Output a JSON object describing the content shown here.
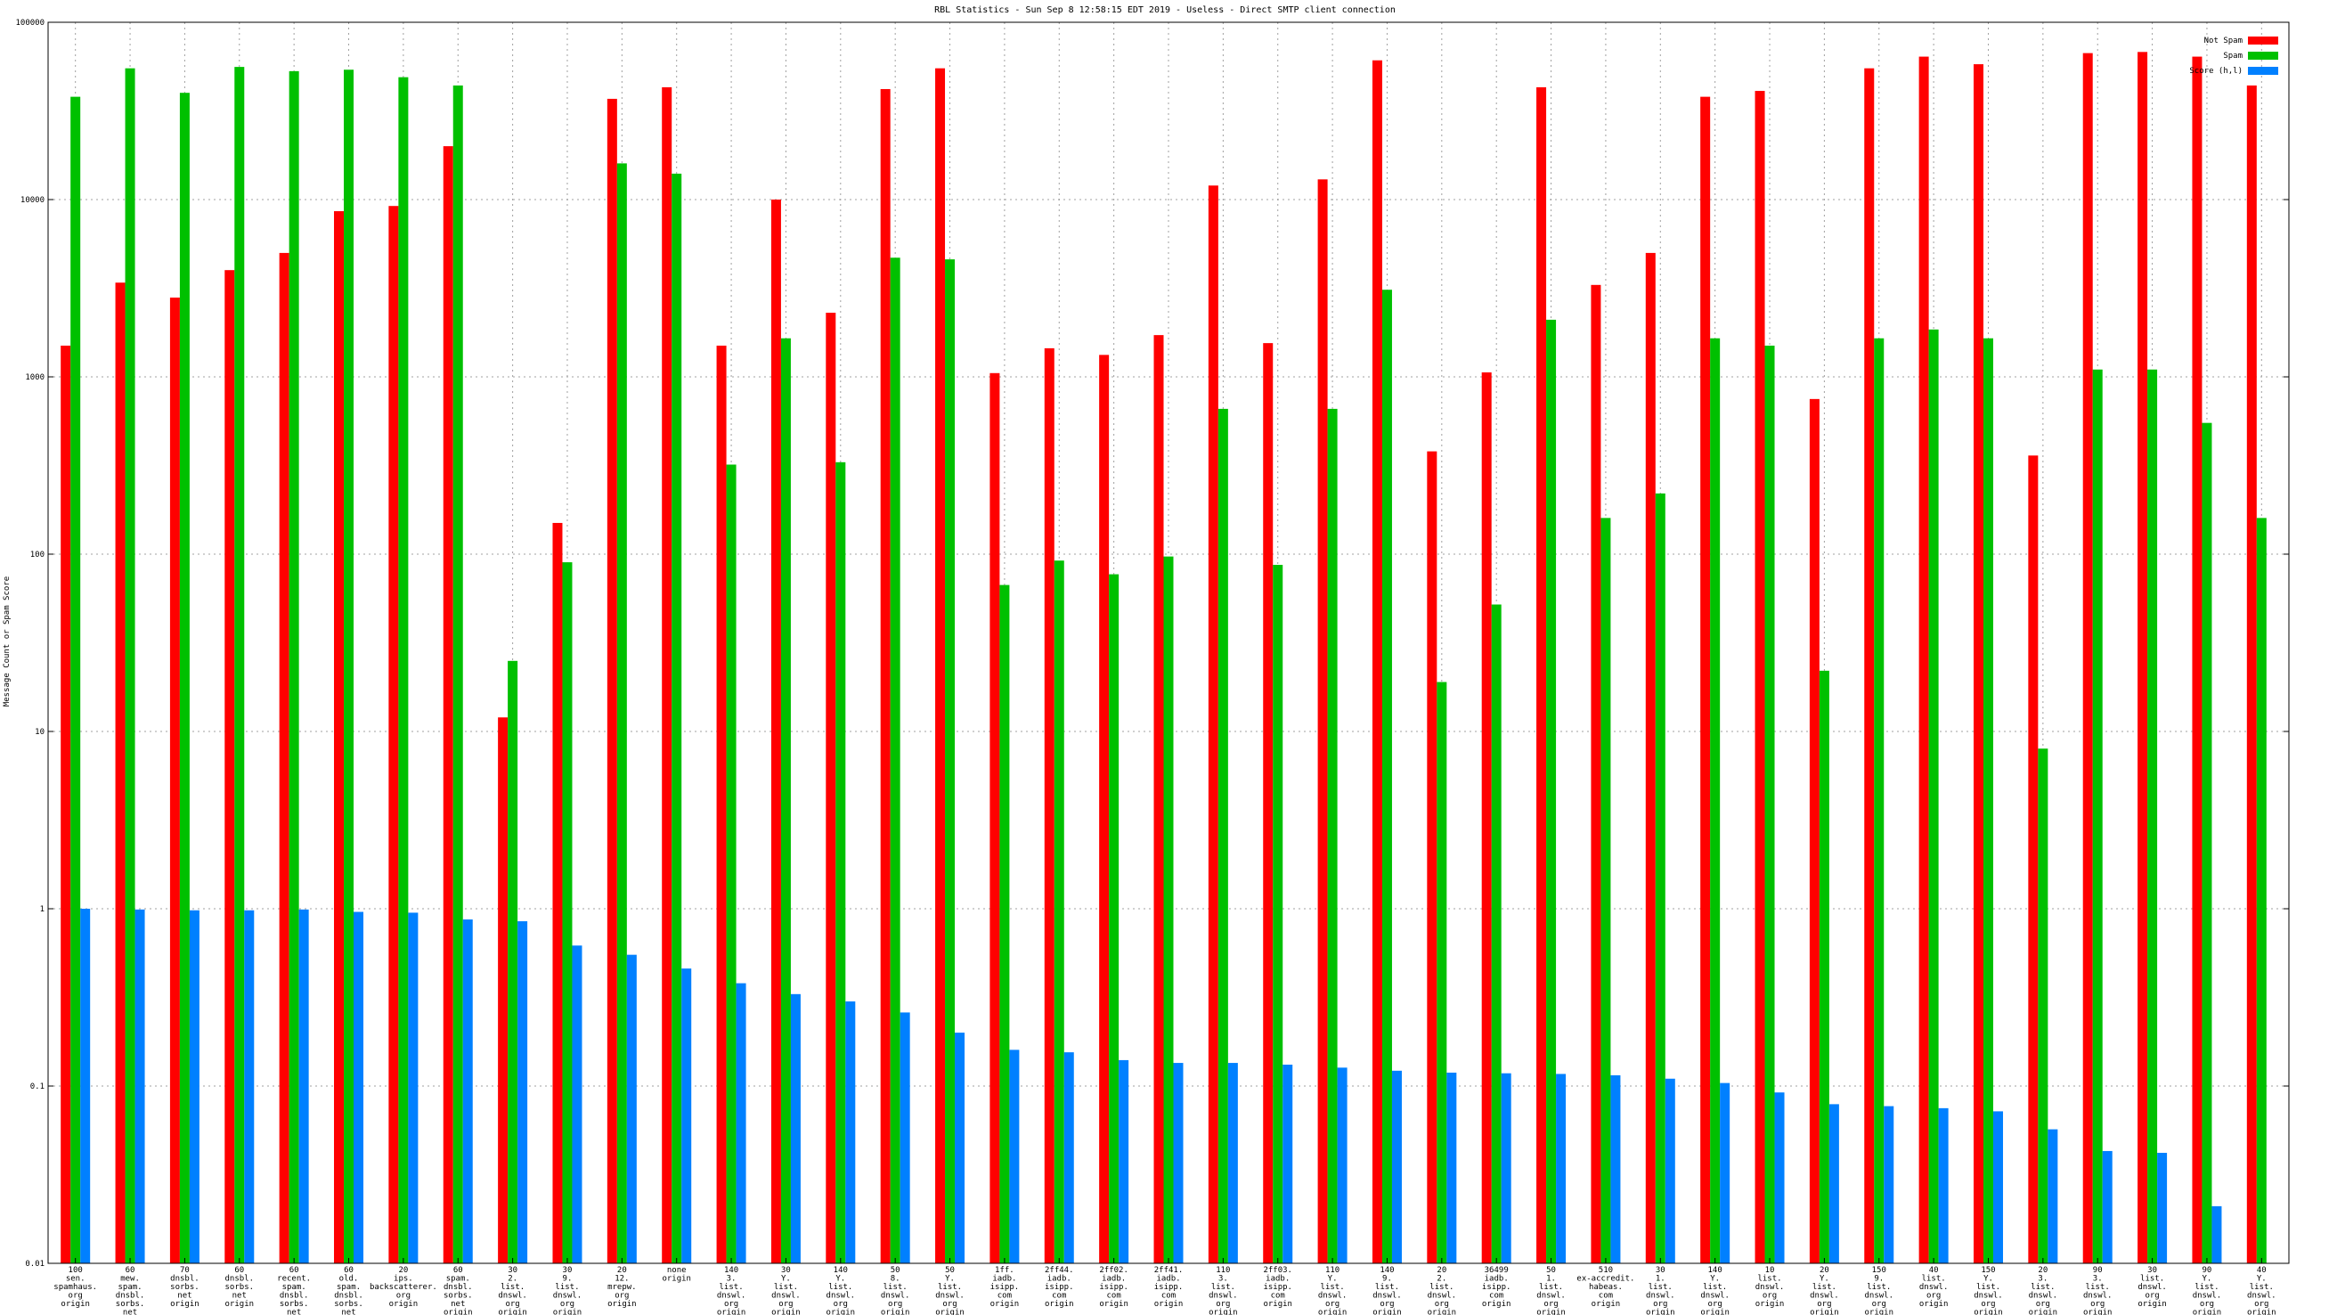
{
  "chart_data": {
    "type": "bar",
    "title": "RBL Statistics - Sun Sep  8 12:58:15 EDT 2019 - Useless - Direct SMTP client connection",
    "xlabel": "",
    "ylabel": "Message Count or Spam Score",
    "yscale": "log",
    "ylim": [
      0.01,
      100000
    ],
    "yticks": [
      "0.01",
      "0.1",
      "1",
      "10",
      "100",
      "1000",
      "10000",
      "100000"
    ],
    "grid": true,
    "legend_position": "top-right",
    "categories": [
      [
        "100",
        "sen.",
        "spamhaus.",
        "org",
        "origin"
      ],
      [
        "60",
        "mew.",
        "spam.",
        "dnsbl.",
        "sorbs.",
        "net",
        "origin"
      ],
      [
        "70",
        "dnsbl.",
        "sorbs.",
        "net",
        "origin"
      ],
      [
        "60",
        "dnsbl.",
        "sorbs.",
        "net",
        "origin"
      ],
      [
        "60",
        "recent.",
        "spam.",
        "dnsbl.",
        "sorbs.",
        "net",
        "origin"
      ],
      [
        "60",
        "old.",
        "spam.",
        "dnsbl.",
        "sorbs.",
        "net",
        "origin"
      ],
      [
        "20",
        "ips.",
        "backscatterer.",
        "org",
        "origin"
      ],
      [
        "60",
        "spam.",
        "dnsbl.",
        "sorbs.",
        "net",
        "origin"
      ],
      [
        "30",
        "2.",
        "list.",
        "dnswl.",
        "org",
        "origin"
      ],
      [
        "30",
        "9.",
        "list.",
        "dnswl.",
        "org",
        "origin"
      ],
      [
        "20",
        "12.",
        "mrepw.",
        "org",
        "origin"
      ],
      [
        "none",
        "origin"
      ],
      [
        "140",
        "3.",
        "list.",
        "dnswl.",
        "org",
        "origin"
      ],
      [
        "30",
        "Y.",
        "list.",
        "dnswl.",
        "org",
        "origin"
      ],
      [
        "140",
        "Y.",
        "list.",
        "dnswl.",
        "org",
        "origin"
      ],
      [
        "50",
        "8.",
        "list.",
        "dnswl.",
        "org",
        "origin"
      ],
      [
        "50",
        "Y.",
        "list.",
        "dnswl.",
        "org",
        "origin"
      ],
      [
        "1ff.",
        "iadb.",
        "isipp.",
        "com",
        "origin"
      ],
      [
        "2ff44.",
        "iadb.",
        "isipp.",
        "com",
        "origin"
      ],
      [
        "2ff02.",
        "iadb.",
        "isipp.",
        "com",
        "origin"
      ],
      [
        "2ff41.",
        "iadb.",
        "isipp.",
        "com",
        "origin"
      ],
      [
        "110",
        "3.",
        "list.",
        "dnswl.",
        "org",
        "origin"
      ],
      [
        "2ff03.",
        "iadb.",
        "isipp.",
        "com",
        "origin"
      ],
      [
        "110",
        "Y.",
        "list.",
        "dnswl.",
        "org",
        "origin"
      ],
      [
        "140",
        "9.",
        "list.",
        "dnswl.",
        "org",
        "origin"
      ],
      [
        "20",
        "2.",
        "list.",
        "dnswl.",
        "org",
        "origin"
      ],
      [
        "36499",
        "iadb.",
        "isipp.",
        "com",
        "origin"
      ],
      [
        "50",
        "1.",
        "list.",
        "dnswl.",
        "org",
        "origin"
      ],
      [
        "510",
        "ex-accredit.",
        "habeas.",
        "com",
        "origin"
      ],
      [
        "30",
        "1.",
        "list.",
        "dnswl.",
        "org",
        "origin"
      ],
      [
        "140",
        "Y.",
        "list.",
        "dnswl.",
        "org",
        "origin"
      ],
      [
        "10",
        "list.",
        "dnswl.",
        "org",
        "origin"
      ],
      [
        "20",
        "Y.",
        "list.",
        "dnswl.",
        "org",
        "origin"
      ],
      [
        "150",
        "9.",
        "list.",
        "dnswl.",
        "org",
        "origin"
      ],
      [
        "40",
        "list.",
        "dnswl.",
        "org",
        "origin"
      ],
      [
        "150",
        "Y.",
        "list.",
        "dnswl.",
        "org",
        "origin"
      ],
      [
        "20",
        "3.",
        "list.",
        "dnswl.",
        "org",
        "origin"
      ],
      [
        "90",
        "3.",
        "list.",
        "dnswl.",
        "org",
        "origin"
      ],
      [
        "30",
        "list.",
        "dnswl.",
        "org",
        "origin"
      ],
      [
        "90",
        "Y.",
        "list.",
        "dnswl.",
        "org",
        "origin"
      ],
      [
        "40",
        "Y.",
        "list.",
        "dnswl.",
        "org",
        "origin"
      ]
    ],
    "series": [
      {
        "name": "Not Spam",
        "color": "#ff0000",
        "values": [
          1500,
          3400,
          2800,
          4000,
          5000,
          8600,
          9200,
          20000,
          12,
          150,
          37000,
          43000,
          1500,
          10000,
          2300,
          42000,
          55000,
          1050,
          1450,
          1330,
          1720,
          12000,
          1550,
          13000,
          61000,
          380,
          1060,
          43000,
          3300,
          5000,
          38000,
          41000,
          750,
          55000,
          64000,
          58000,
          360,
          67000,
          68000,
          64000,
          44000
        ]
      },
      {
        "name": "Spam",
        "color": "#00c000",
        "values": [
          38000,
          55000,
          40000,
          56000,
          53000,
          54000,
          49000,
          44000,
          25,
          90,
          16000,
          14000,
          320,
          1650,
          330,
          4700,
          4600,
          67,
          92,
          77,
          97,
          660,
          87,
          660,
          3100,
          19,
          52,
          2100,
          160,
          220,
          1650,
          1500,
          22,
          1650,
          1850,
          1650,
          8,
          1100,
          1100,
          550,
          160
        ]
      },
      {
        "name": "Score (h,l)",
        "color": "#0080ff",
        "values": [
          1.0,
          0.99,
          0.98,
          0.98,
          0.99,
          0.96,
          0.95,
          0.87,
          0.85,
          0.62,
          0.55,
          0.46,
          0.38,
          0.33,
          0.3,
          0.26,
          0.2,
          0.16,
          0.155,
          0.14,
          0.135,
          0.135,
          0.132,
          0.127,
          0.122,
          0.119,
          0.118,
          0.117,
          0.115,
          0.11,
          0.104,
          0.092,
          0.079,
          0.077,
          0.075,
          0.072,
          0.057,
          0.043,
          0.042,
          0.021,
          0.01
        ]
      }
    ]
  }
}
